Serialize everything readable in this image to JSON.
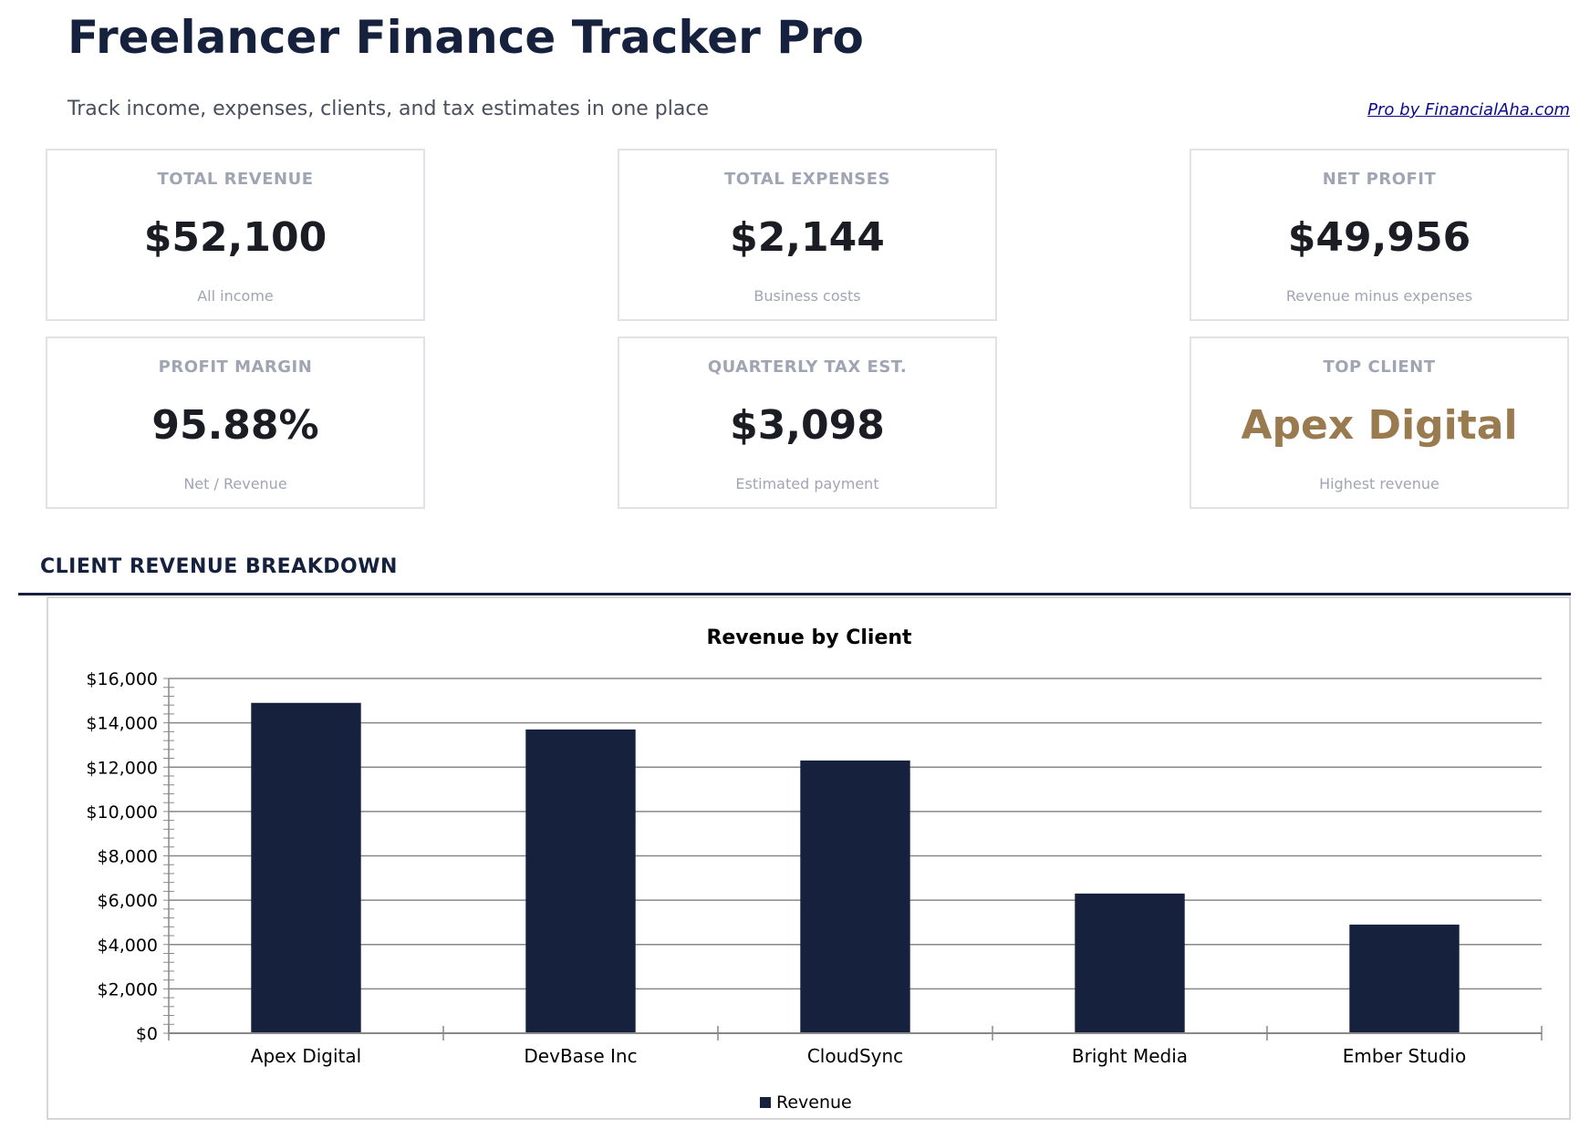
{
  "header": {
    "title": "Freelancer Finance Tracker Pro",
    "subtitle": "Track income, expenses, clients, and tax estimates in one place",
    "link": "Pro by FinancialAha.com"
  },
  "cards": [
    {
      "label": "TOTAL REVENUE",
      "value": "$52,100",
      "sub": "All income"
    },
    {
      "label": "TOTAL EXPENSES",
      "value": "$2,144",
      "sub": "Business costs"
    },
    {
      "label": "NET PROFIT",
      "value": "$49,956",
      "sub": "Revenue minus expenses"
    },
    {
      "label": "PROFIT MARGIN",
      "value": "95.88%",
      "sub": "Net / Revenue"
    },
    {
      "label": "QUARTERLY TAX EST.",
      "value": "$3,098",
      "sub": "Estimated payment"
    },
    {
      "label": "TOP CLIENT",
      "value": "Apex Digital",
      "sub": "Highest revenue"
    }
  ],
  "colors": {
    "primary": "#16213e",
    "top_client": "#9a7b4f",
    "bar": "#16213e"
  },
  "section": {
    "title": "CLIENT REVENUE BREAKDOWN"
  },
  "chart_data": {
    "type": "bar",
    "title": "Revenue by Client",
    "categories": [
      "Apex Digital",
      "DevBase Inc",
      "CloudSync",
      "Bright Media",
      "Ember Studio"
    ],
    "series": [
      {
        "name": "Revenue",
        "values": [
          14900,
          13700,
          12300,
          6300,
          4900
        ]
      }
    ],
    "ylim": [
      0,
      16000
    ],
    "yticks": [
      0,
      2000,
      4000,
      6000,
      8000,
      10000,
      12000,
      14000,
      16000
    ],
    "ytick_labels": [
      "$0",
      "$2,000",
      "$4,000",
      "$6,000",
      "$8,000",
      "$10,000",
      "$12,000",
      "$14,000",
      "$16,000"
    ],
    "grid": true,
    "legend": "bottom"
  }
}
